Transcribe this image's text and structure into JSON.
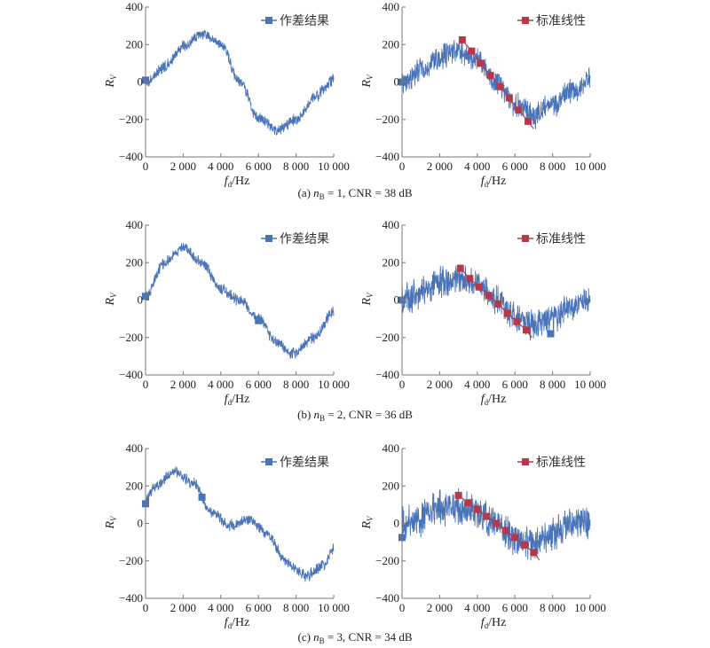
{
  "colors": {
    "measured": "#4a74b8",
    "standard": "#b5394a"
  },
  "chart_data": [
    {
      "type": "line",
      "panel": "a-left",
      "xlabel_main": "f",
      "xlabel_sub": "d",
      "xlabel_unit": "/Hz",
      "ylabel_main": "R",
      "ylabel_sub": "V",
      "xlim": [
        0,
        10000
      ],
      "ylim": [
        -400,
        400
      ],
      "xticks": [
        "0",
        "2 000",
        "4 000",
        "6 000",
        "8 000",
        "10 000"
      ],
      "yticks": [
        "400",
        "200",
        "0",
        "−200",
        "−400"
      ],
      "legend": "作差结果",
      "legend_series": "measured",
      "noise": 30,
      "center": {
        "x": [
          0,
          1000,
          2000,
          3000,
          4000,
          5000,
          6000,
          7000,
          8000,
          9000,
          10000
        ],
        "y": [
          0,
          80,
          190,
          260,
          200,
          0,
          -190,
          -260,
          -200,
          -80,
          10
        ]
      },
      "markers": {
        "x": [
          0
        ],
        "y": [
          10
        ]
      }
    },
    {
      "type": "line",
      "panel": "a-right",
      "xlabel_main": "f",
      "xlabel_sub": "d",
      "xlabel_unit": "/Hz",
      "ylabel_main": "R",
      "ylabel_sub": "V",
      "xlim": [
        0,
        10000
      ],
      "ylim": [
        -400,
        400
      ],
      "xticks": [
        "0",
        "2 000",
        "4 000",
        "6 000",
        "8 000",
        "10 000"
      ],
      "yticks": [
        "400",
        "200",
        "0",
        "−200",
        "−400"
      ],
      "legend": "标准线性",
      "legend_series": "standard",
      "noise": 65,
      "center": {
        "x": [
          0,
          1000,
          2000,
          3000,
          4000,
          5000,
          6000,
          7000,
          8000,
          9000,
          10000
        ],
        "y": [
          0,
          60,
          130,
          170,
          120,
          0,
          -120,
          -180,
          -120,
          -50,
          10
        ]
      },
      "markers": {
        "x": [
          0
        ],
        "y": [
          0
        ]
      },
      "standard": {
        "x": [
          3200,
          3700,
          4200,
          4700,
          5200,
          5700,
          6200,
          6700
        ],
        "y": [
          225,
          165,
          100,
          35,
          -25,
          -85,
          -150,
          -210
        ]
      }
    },
    {
      "type": "line",
      "panel": "b-left",
      "xlabel_main": "f",
      "xlabel_sub": "d",
      "xlabel_unit": "/Hz",
      "ylabel_main": "R",
      "ylabel_sub": "V",
      "xlim": [
        0,
        10000
      ],
      "ylim": [
        -400,
        400
      ],
      "xticks": [
        "0",
        "2 000",
        "4 000",
        "6 000",
        "8 000",
        "10 000"
      ],
      "yticks": [
        "400",
        "200",
        "0",
        "−200",
        "−400"
      ],
      "legend": "作差结果",
      "legend_series": "measured",
      "noise": 30,
      "center": {
        "x": [
          0,
          1000,
          2000,
          3000,
          4000,
          5000,
          6000,
          7000,
          7800,
          9000,
          10000
        ],
        "y": [
          20,
          200,
          280,
          200,
          60,
          0,
          -100,
          -230,
          -285,
          -200,
          -60
        ]
      },
      "markers": {
        "x": [
          0,
          6000
        ],
        "y": [
          20,
          -110
        ]
      }
    },
    {
      "type": "line",
      "panel": "b-right",
      "xlabel_main": "f",
      "xlabel_sub": "d",
      "xlabel_unit": "/Hz",
      "ylabel_main": "R",
      "ylabel_sub": "V",
      "xlim": [
        0,
        10000
      ],
      "ylim": [
        -400,
        400
      ],
      "xticks": [
        "0",
        "2 000",
        "4 000",
        "6 000",
        "8 000",
        "10 000"
      ],
      "yticks": [
        "400",
        "200",
        "0",
        "−200",
        "−400"
      ],
      "legend": "标准线性",
      "legend_series": "standard",
      "noise": 80,
      "center": {
        "x": [
          0,
          1000,
          2000,
          3000,
          4000,
          5000,
          6000,
          7000,
          8000,
          9000,
          10000
        ],
        "y": [
          0,
          40,
          100,
          120,
          80,
          0,
          -90,
          -130,
          -100,
          -40,
          10
        ]
      },
      "markers": {
        "x": [
          0,
          7900
        ],
        "y": [
          0,
          -180
        ]
      },
      "standard": {
        "x": [
          3100,
          3600,
          4100,
          4600,
          5100,
          5600,
          6100,
          6600
        ],
        "y": [
          170,
          115,
          70,
          25,
          -20,
          -70,
          -115,
          -160
        ]
      }
    },
    {
      "type": "line",
      "panel": "c-left",
      "xlabel_main": "f",
      "xlabel_sub": "d",
      "xlabel_unit": "/Hz",
      "ylabel_main": "R",
      "ylabel_sub": "V",
      "xlim": [
        0,
        10000
      ],
      "ylim": [
        -400,
        400
      ],
      "xticks": [
        "0",
        "2 000",
        "4 000",
        "6 000",
        "8 000",
        "10 000"
      ],
      "yticks": [
        "400",
        "200",
        "0",
        "−200",
        "−400"
      ],
      "legend": "作差结果",
      "legend_series": "measured",
      "noise": 30,
      "center": {
        "x": [
          0,
          500,
          1500,
          2500,
          3500,
          4500,
          5500,
          6500,
          7500,
          8500,
          9500,
          10000
        ],
        "y": [
          120,
          200,
          280,
          220,
          60,
          -10,
          20,
          -60,
          -210,
          -280,
          -220,
          -130
        ]
      },
      "markers": {
        "x": [
          0,
          3000
        ],
        "y": [
          105,
          140
        ]
      }
    },
    {
      "type": "line",
      "panel": "c-right",
      "xlabel_main": "f",
      "xlabel_sub": "d",
      "xlabel_unit": "/Hz",
      "ylabel_main": "R",
      "ylabel_sub": "V",
      "xlim": [
        0,
        10000
      ],
      "ylim": [
        -400,
        400
      ],
      "xticks": [
        "0",
        "2 000",
        "4 000",
        "6 000",
        "8 000",
        "10 000"
      ],
      "yticks": [
        "400",
        "200",
        "0",
        "−200",
        "−400"
      ],
      "legend": "标准线性",
      "legend_series": "standard",
      "noise": 90,
      "center": {
        "x": [
          0,
          1000,
          2000,
          3000,
          4000,
          5000,
          6000,
          7000,
          8000,
          9000,
          10000
        ],
        "y": [
          0,
          30,
          80,
          90,
          60,
          -10,
          -80,
          -110,
          -60,
          0,
          10
        ]
      },
      "markers": {
        "x": [
          0
        ],
        "y": [
          -75
        ]
      },
      "standard": {
        "x": [
          3000,
          3500,
          4000,
          4500,
          5000,
          5500,
          6000,
          6500,
          7000
        ],
        "y": [
          150,
          110,
          75,
          38,
          0,
          -38,
          -75,
          -115,
          -155
        ]
      }
    }
  ],
  "captions": [
    {
      "pre": "(a) ",
      "n": "n",
      "sub": "B",
      "post": " = 1, CNR = 38 dB"
    },
    {
      "pre": "(b) ",
      "n": "n",
      "sub": "B",
      "post": " = 2, CNR = 36 dB"
    },
    {
      "pre": "(c) ",
      "n": "n",
      "sub": "B",
      "post": " = 3, CNR = 34 dB"
    }
  ]
}
